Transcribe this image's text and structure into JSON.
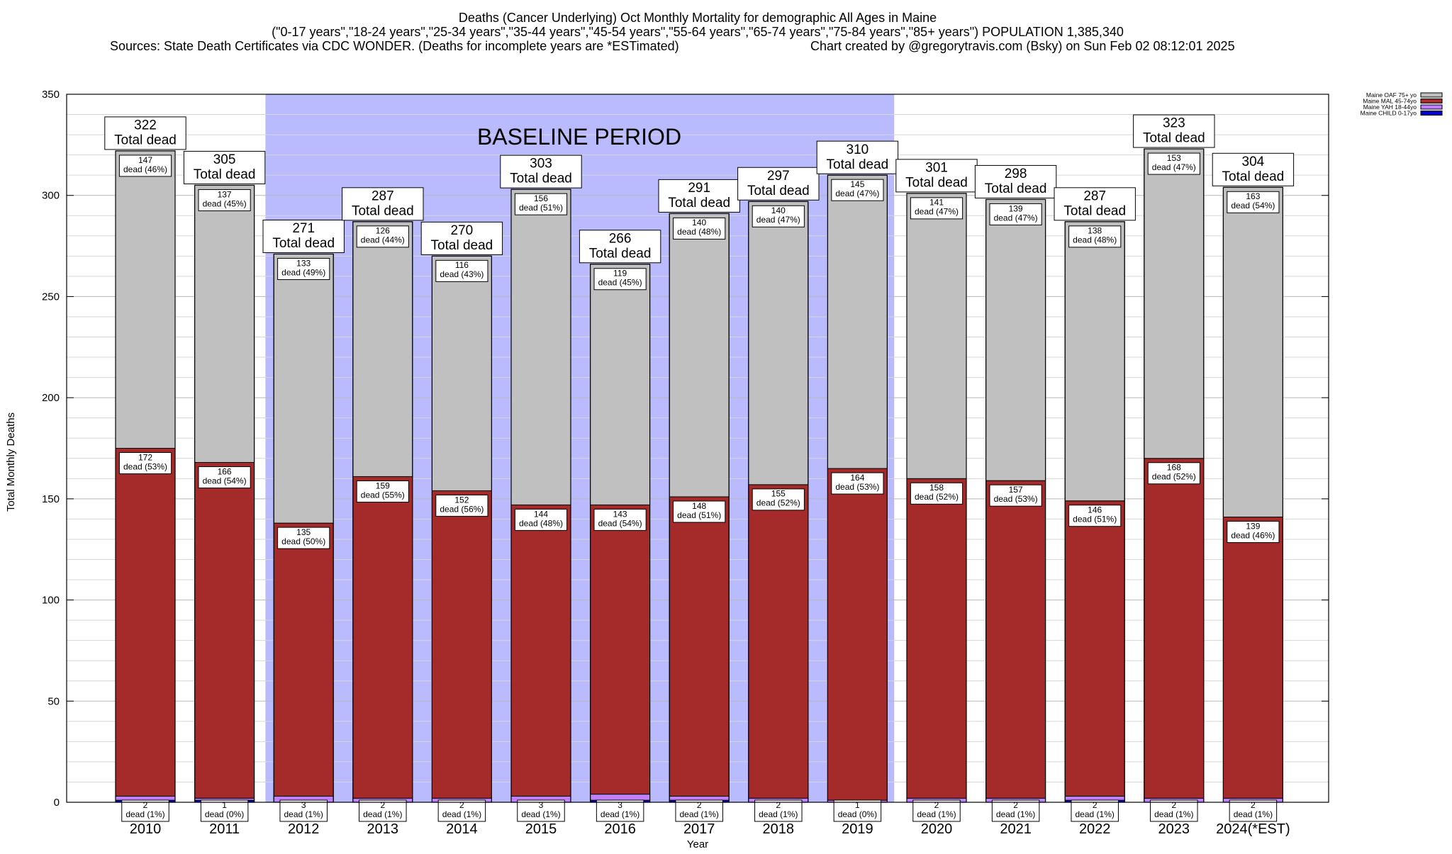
{
  "chart_data": {
    "type": "bar",
    "stacked": true,
    "title_lines": [
      "Deaths (Cancer Underlying) Oct Monthly Mortality for demographic All Ages in Maine",
      "(\"0-17 years\",\"18-24 years\",\"25-34 years\",\"35-44 years\",\"45-54 years\",\"55-64 years\",\"65-74 years\",\"75-84 years\",\"85+ years\") POPULATION 1,385,340"
    ],
    "sources": "Sources: State Death Certificates via CDC WONDER. (Deaths for incomplete years are *ESTimated)",
    "credit": "Chart created by @gregorytravis.com (Bsky) on Sun Feb 02 08:12:01 2025",
    "xlabel": "Year",
    "ylabel": "Total Monthly Deaths",
    "ylim": [
      0,
      350
    ],
    "yticks": [
      0,
      50,
      100,
      150,
      200,
      250,
      300,
      350
    ],
    "grid": true,
    "legend_position": "top-right",
    "baseline_label": "BASELINE PERIOD",
    "baseline_range": [
      "2012",
      "2019"
    ],
    "total_suffix": "Total dead",
    "dead_word": "dead",
    "categories": [
      "2010",
      "2011",
      "2012",
      "2013",
      "2014",
      "2015",
      "2016",
      "2017",
      "2018",
      "2019",
      "2020",
      "2021",
      "2022",
      "2023",
      "2024(*EST)"
    ],
    "totals": [
      322,
      305,
      271,
      287,
      270,
      303,
      266,
      291,
      297,
      310,
      301,
      298,
      287,
      323,
      304
    ],
    "series": [
      {
        "name": "Maine CHILD 0-17yo",
        "color": "#0000cc",
        "values": [
          1,
          1,
          0,
          0,
          0,
          0,
          1,
          1,
          0,
          0,
          0,
          0,
          1,
          0,
          0
        ]
      },
      {
        "name": "Maine YAH 18-44yo",
        "color": "#c080ff",
        "values": [
          2,
          1,
          3,
          2,
          2,
          3,
          3,
          2,
          2,
          1,
          2,
          2,
          2,
          2,
          2
        ],
        "labels": [
          "2",
          "1",
          "3",
          "2",
          "2",
          "3",
          "3",
          "2",
          "2",
          "1",
          "2",
          "2",
          "2",
          "2",
          "2"
        ],
        "pct": [
          "1%",
          "0%",
          "1%",
          "1%",
          "1%",
          "1%",
          "1%",
          "1%",
          "1%",
          "0%",
          "1%",
          "1%",
          "1%",
          "1%",
          "1%"
        ]
      },
      {
        "name": "Maine MAL 45-74yo",
        "color": "#a52a2a",
        "values": [
          172,
          166,
          135,
          159,
          152,
          144,
          143,
          148,
          155,
          164,
          158,
          157,
          146,
          168,
          139
        ],
        "pct": [
          "53%",
          "54%",
          "50%",
          "55%",
          "56%",
          "48%",
          "54%",
          "51%",
          "52%",
          "53%",
          "52%",
          "53%",
          "51%",
          "52%",
          "46%"
        ]
      },
      {
        "name": "Maine OAF 75+ yo",
        "color": "#c0c0c0",
        "values": [
          147,
          137,
          133,
          126,
          116,
          156,
          119,
          140,
          140,
          145,
          141,
          139,
          138,
          153,
          163
        ],
        "pct": [
          "46%",
          "45%",
          "49%",
          "44%",
          "43%",
          "51%",
          "45%",
          "48%",
          "47%",
          "47%",
          "47%",
          "47%",
          "48%",
          "47%",
          "54%"
        ]
      }
    ],
    "legend_order": [
      "Maine OAF 75+ yo",
      "Maine MAL 45-74yo",
      "Maine YAH 18-44yo",
      "Maine CHILD 0-17yo"
    ],
    "colors": {
      "baseline": "#babaff",
      "grid": "#c8c8c8"
    }
  }
}
